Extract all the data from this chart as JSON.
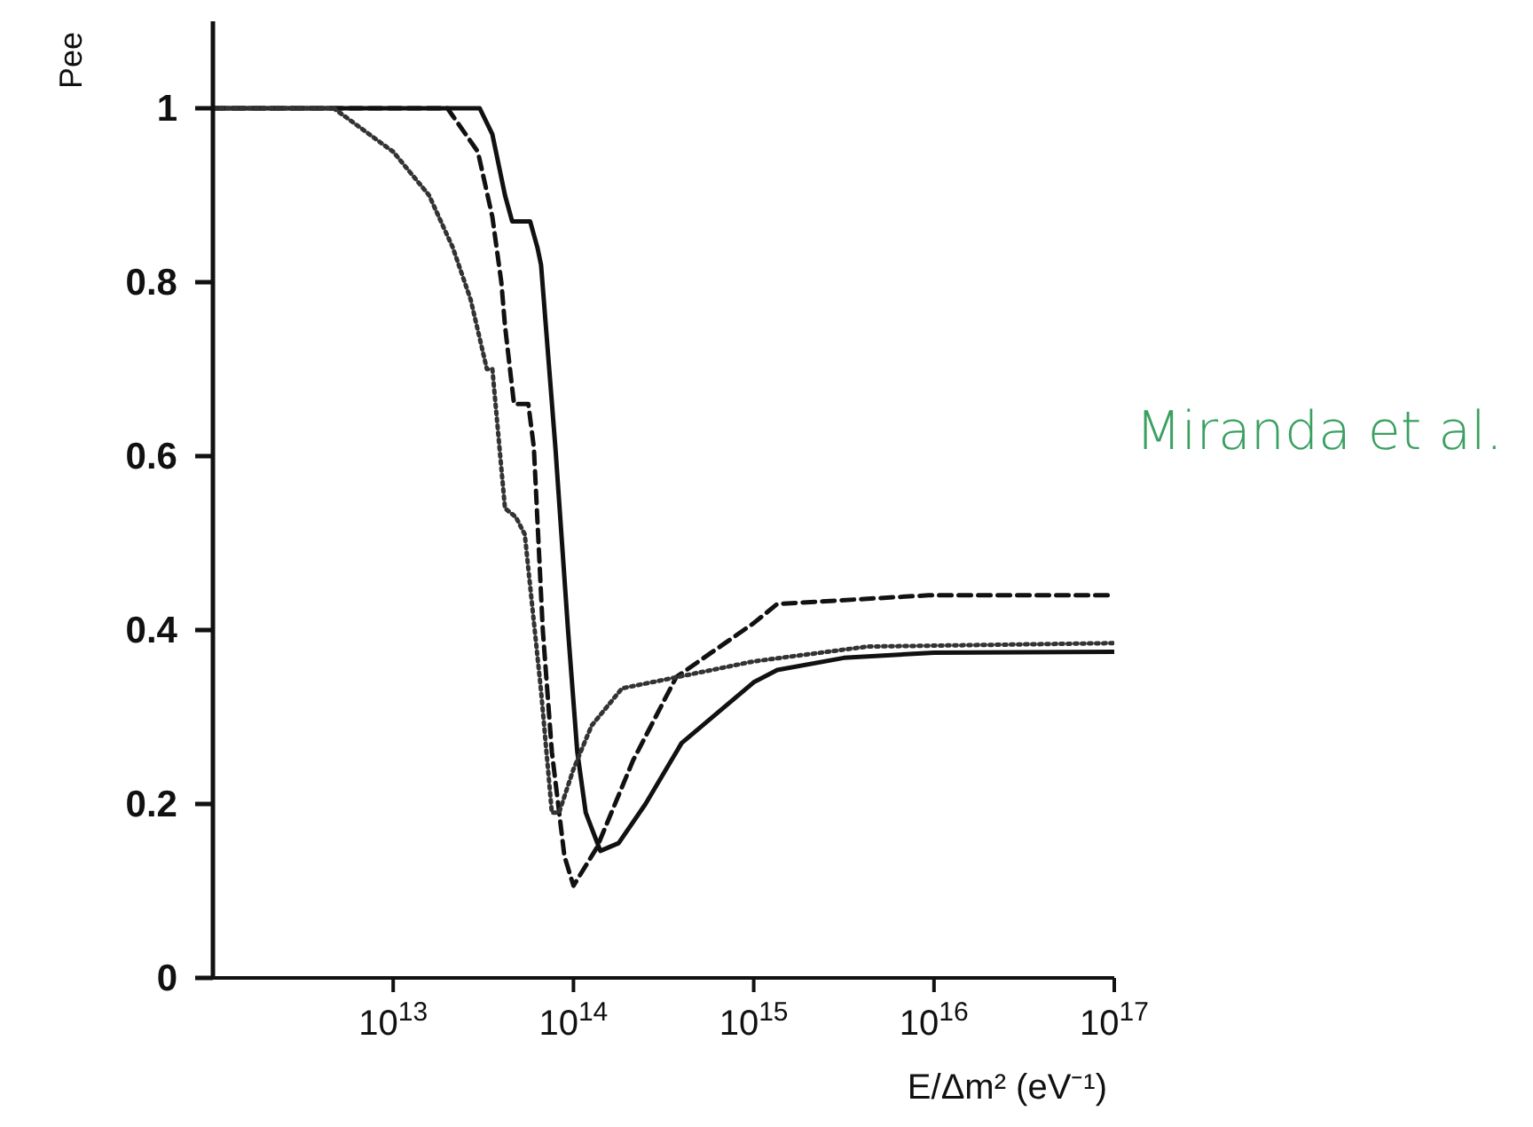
{
  "chart_data": {
    "type": "line",
    "xlabel": "E/Δm² (eV⁻¹)",
    "ylabel": "Pee",
    "log": "x",
    "marker": "none",
    "xlim": [
      1000000000000.0,
      1e+17
    ],
    "xticks": [
      {
        "value": 10000000000000.0,
        "label": "10$^{13}$"
      },
      {
        "value": 100000000000000.0,
        "label": "10$^{14}$"
      },
      {
        "value": 1000000000000000.0,
        "label": "10$^{15}$"
      },
      {
        "value": 1e+16,
        "label": "10$^{16}$"
      },
      {
        "value": 1e+17,
        "label": "10$^{17}$"
      }
    ],
    "ylim": [
      0,
      1.1
    ],
    "yticks": [
      0,
      0.2,
      0.4,
      0.6,
      0.8,
      1
    ],
    "annotations": [
      "Miranda et al."
    ],
    "series": [
      {
        "color": "#111111",
        "line_style": "solid",
        "x": [
          1000000000000.0,
          10000000000000.0,
          30200000000000.0,
          35500000000000.0,
          41700000000000.0,
          45700000000000.0,
          57500000000000.0,
          63100000000000.0,
          66100000000000.0,
          79400000000000.0,
          93300000000000.0,
          105000000000000.0,
          117000000000000.0,
          141000000000000.0,
          178000000000000.0,
          251000000000000.0,
          398000000000000.0,
          1000000000000000.0,
          1350000000000000.0,
          3160000000000000.0,
          1e+16,
          1e+17
        ],
        "values": [
          1,
          1,
          1,
          0.97,
          0.9,
          0.87,
          0.87,
          0.84,
          0.82,
          0.61,
          0.4,
          0.26,
          0.19,
          0.146,
          0.155,
          0.2,
          0.27,
          0.34,
          0.354,
          0.368,
          0.374,
          0.375
        ]
      },
      {
        "color": "#111111",
        "line_style": "dashed",
        "x": [
          1000000000000.0,
          10000000000000.0,
          20000000000000.0,
          29500000000000.0,
          35500000000000.0,
          39800000000000.0,
          41700000000000.0,
          46800000000000.0,
          56200000000000.0,
          60300000000000.0,
          67600000000000.0,
          75900000000000.0,
          89100000000000.0,
          100000000000000.0,
          135000000000000.0,
          214000000000000.0,
          372000000000000.0,
          1000000000000000.0,
          1350000000000000.0,
          9330000000000000.0,
          1e+17
        ],
        "values": [
          1,
          1,
          1,
          0.95,
          0.875,
          0.8,
          0.75,
          0.66,
          0.66,
          0.61,
          0.4,
          0.26,
          0.14,
          0.106,
          0.15,
          0.25,
          0.346,
          0.408,
          0.43,
          0.44,
          0.44
        ]
      },
      {
        "color": "#333333",
        "line_style": "dotted",
        "x": [
          1000000000000.0,
          4680000000000.0,
          10000000000000.0,
          15800000000000.0,
          21400000000000.0,
          26900000000000.0,
          33100000000000.0,
          35500000000000.0,
          41700000000000.0,
          47900000000000.0,
          53700000000000.0,
          66100000000000.0,
          75900000000000.0,
          83200000000000.0,
          100000000000000.0,
          126000000000000.0,
          186000000000000.0,
          339000000000000.0,
          1000000000000000.0,
          4270000000000000.0,
          1e+17
        ],
        "values": [
          1,
          1,
          0.95,
          0.9,
          0.84,
          0.78,
          0.7,
          0.7,
          0.54,
          0.53,
          0.51,
          0.33,
          0.19,
          0.19,
          0.24,
          0.29,
          0.333,
          0.344,
          0.364,
          0.381,
          0.385
        ]
      }
    ]
  }
}
